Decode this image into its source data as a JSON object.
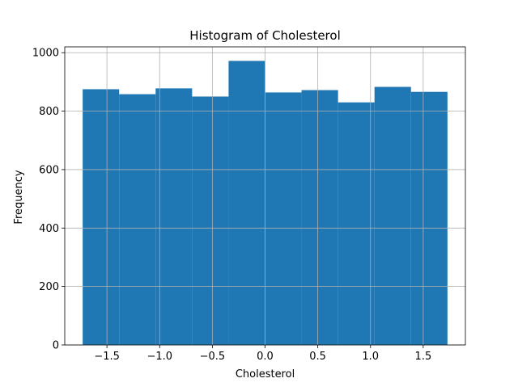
{
  "chart_data": {
    "type": "bar",
    "title": "Histogram of Cholesterol",
    "xlabel": "Cholesterol",
    "ylabel": "Frequency",
    "bin_edges": [
      -1.73,
      -1.384,
      -1.038,
      -0.692,
      -0.346,
      0.0,
      0.346,
      0.692,
      1.038,
      1.384,
      1.73
    ],
    "values": [
      875,
      858,
      878,
      850,
      972,
      864,
      872,
      830,
      883,
      866
    ],
    "xlim": [
      -1.9,
      1.9
    ],
    "ylim": [
      0,
      1020
    ],
    "xticks": [
      -1.5,
      -1.0,
      -0.5,
      0.0,
      0.5,
      1.0,
      1.5
    ],
    "xtick_labels": [
      "−1.5",
      "−1.0",
      "−0.5",
      "0.0",
      "0.5",
      "1.0",
      "1.5"
    ],
    "yticks": [
      0,
      200,
      400,
      600,
      800,
      1000
    ],
    "ytick_labels": [
      "0",
      "200",
      "400",
      "600",
      "800",
      "1000"
    ],
    "grid": true,
    "bar_color": "#1f77b4",
    "grid_color": "#b0b0b0"
  }
}
